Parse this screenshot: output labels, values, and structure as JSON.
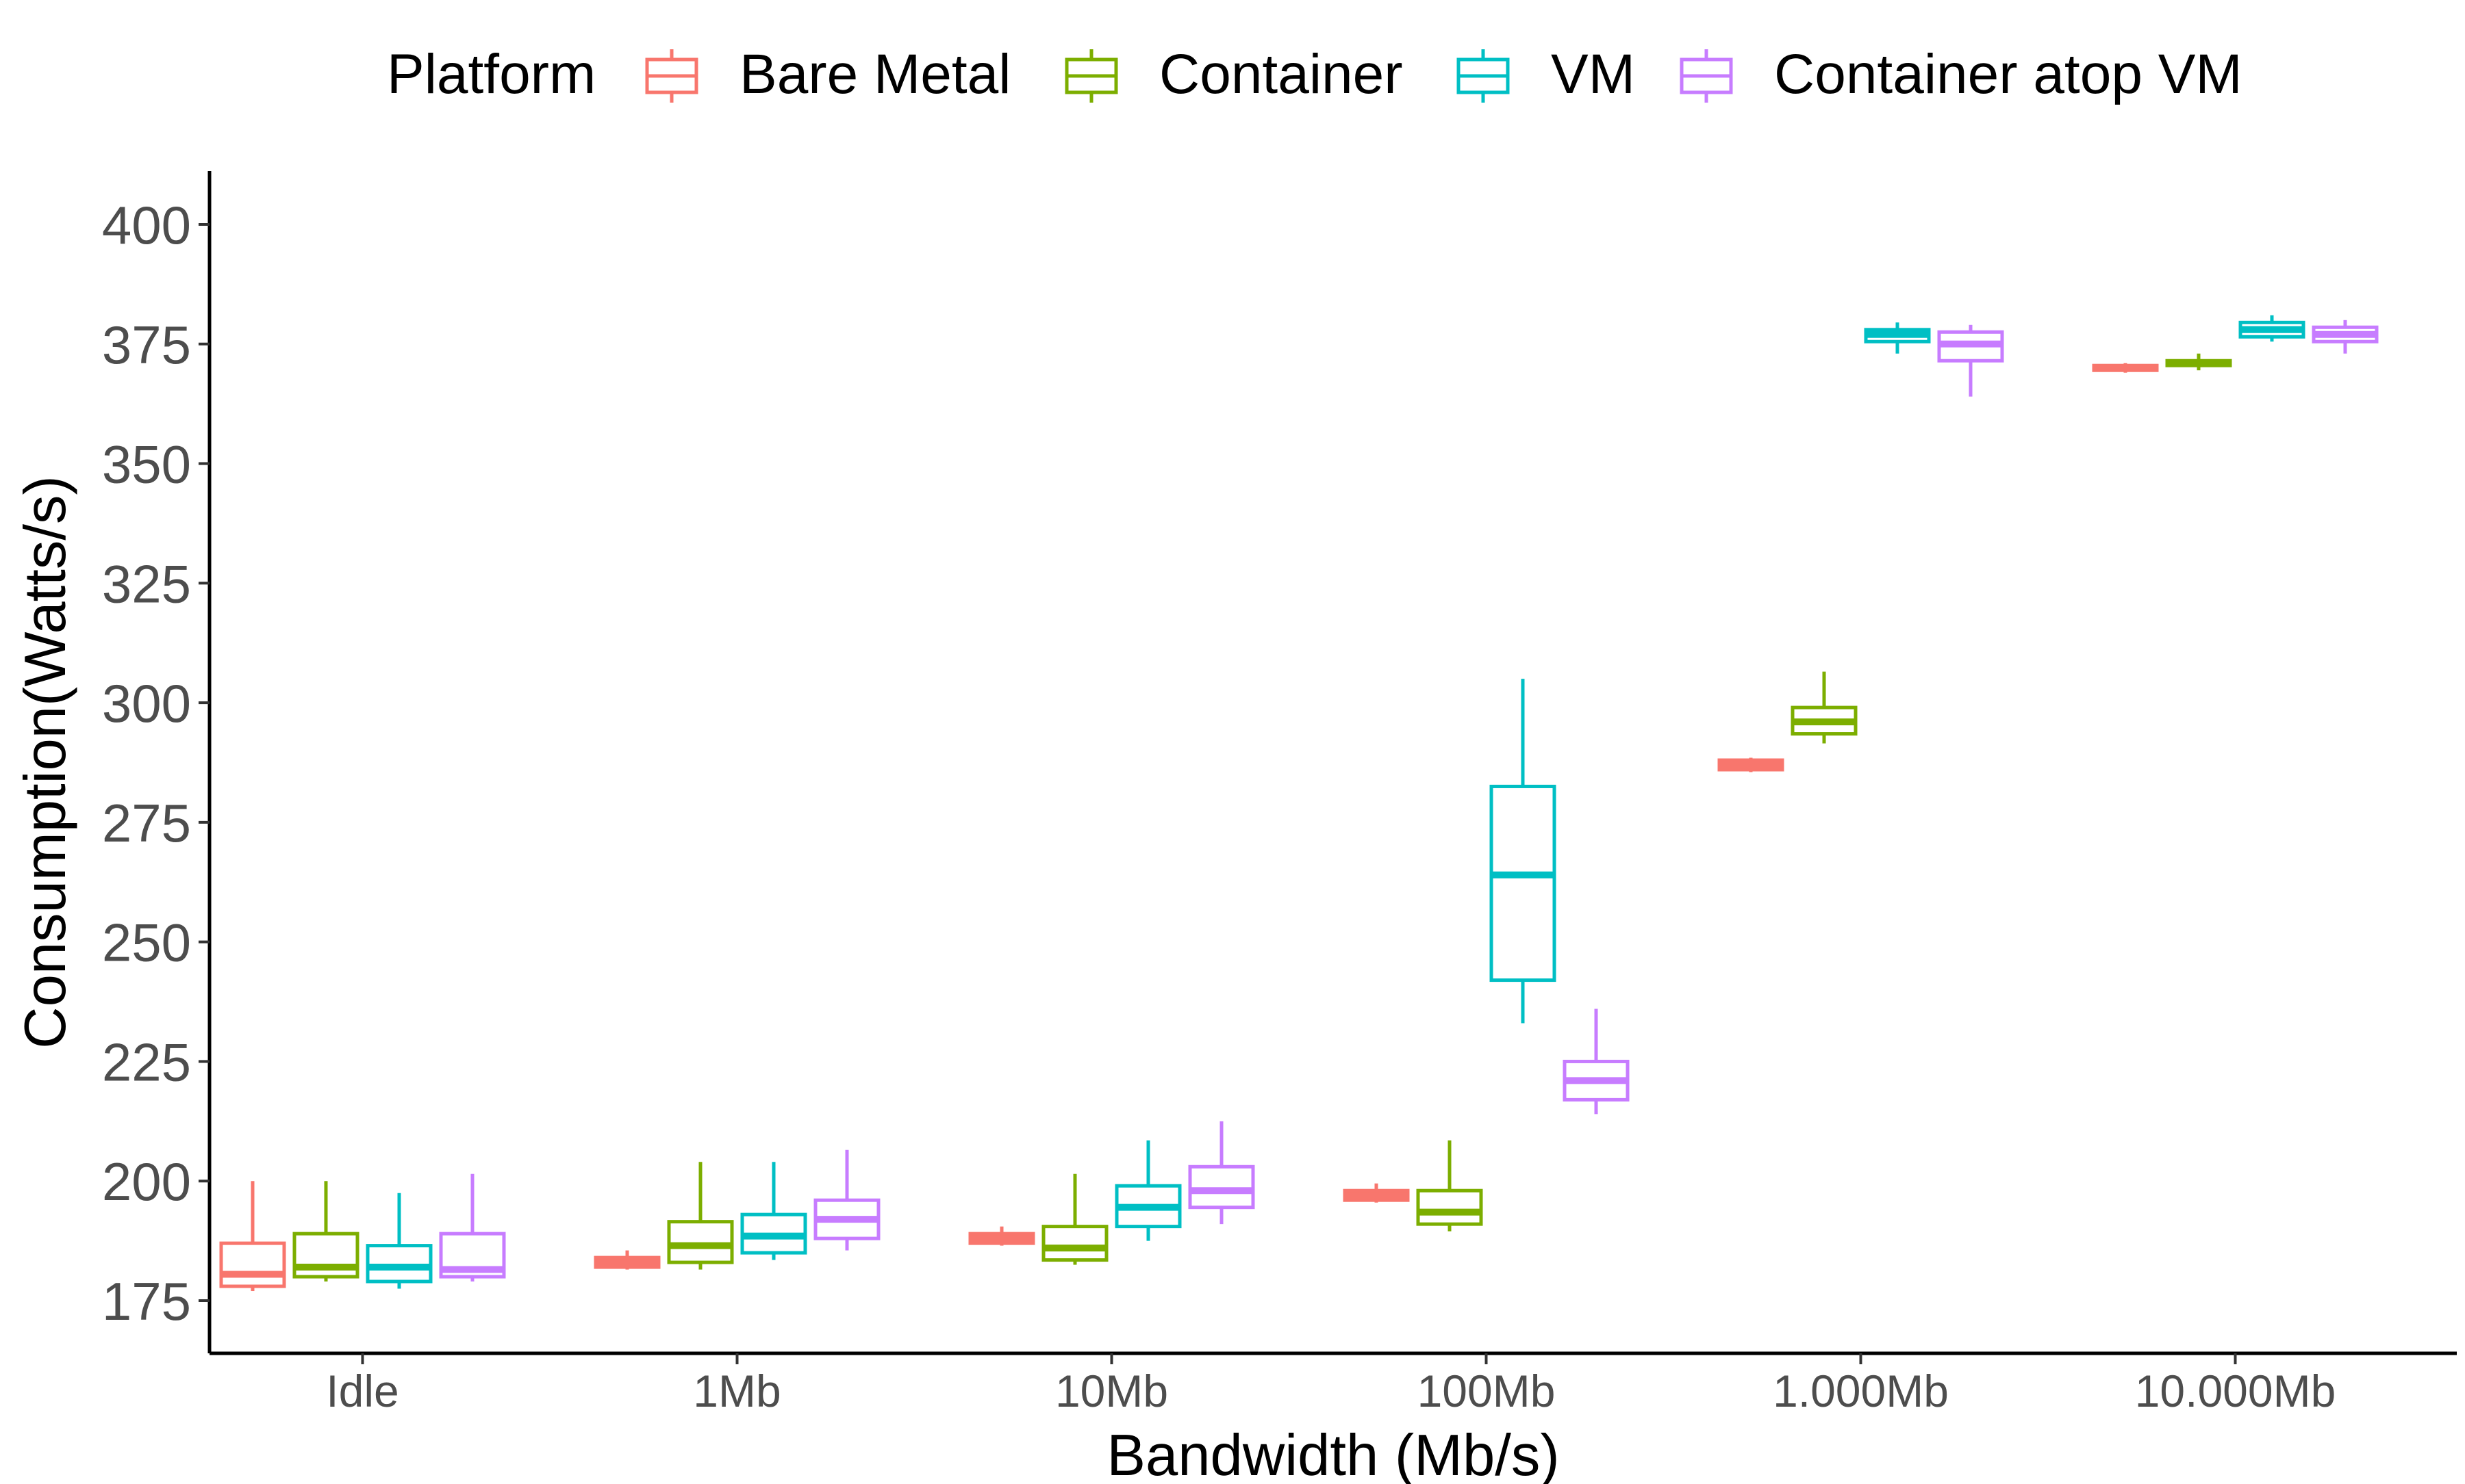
{
  "chart_data": {
    "type": "box",
    "xlabel": "Bandwidth (Mb/s)",
    "ylabel": "Consumption(Watts/s)",
    "ylim": [
      165,
      408
    ],
    "yticks": [
      175,
      200,
      225,
      250,
      275,
      300,
      325,
      350,
      375,
      400
    ],
    "categories": [
      "Idle",
      "1Mb",
      "10Mb",
      "100Mb",
      "1.000Mb",
      "10.000Mb"
    ],
    "legend": {
      "title": "Platform",
      "position": "top"
    },
    "grid": false,
    "series": [
      {
        "name": "Bare Metal",
        "color": "#F8766D",
        "boxes": [
          {
            "min": 177,
            "q1": 178,
            "median": 180.5,
            "q3": 187,
            "max": 200
          },
          {
            "min": 181.5,
            "q1": 182,
            "median": 183,
            "q3": 184,
            "max": 185.5
          },
          {
            "min": 186.5,
            "q1": 187,
            "median": 188,
            "q3": 189,
            "max": 190.5
          },
          {
            "min": 195.5,
            "q1": 196,
            "median": 197,
            "q3": 198,
            "max": 199.5
          },
          {
            "min": 285.5,
            "q1": 286,
            "median": 287,
            "q3": 288,
            "max": 288.5
          },
          {
            "min": 369,
            "q1": 369.5,
            "median": 370,
            "q3": 370.5,
            "max": 371
          }
        ]
      },
      {
        "name": "Container",
        "color": "#7CAE00",
        "boxes": [
          {
            "min": 179,
            "q1": 180,
            "median": 182,
            "q3": 189,
            "max": 200
          },
          {
            "min": 181.5,
            "q1": 183,
            "median": 186.5,
            "q3": 191.5,
            "max": 204
          },
          {
            "min": 182.5,
            "q1": 183.5,
            "median": 186,
            "q3": 190.5,
            "max": 201.5
          },
          {
            "min": 189.5,
            "q1": 191,
            "median": 193.5,
            "q3": 198,
            "max": 208.5
          },
          {
            "min": 291.5,
            "q1": 293.5,
            "median": 296,
            "q3": 299,
            "max": 306.5
          },
          {
            "min": 369.5,
            "q1": 370.5,
            "median": 371,
            "q3": 371.5,
            "max": 373
          }
        ]
      },
      {
        "name": "VM",
        "color": "#00BFC4",
        "boxes": [
          {
            "min": 177.5,
            "q1": 179,
            "median": 182,
            "q3": 186.5,
            "max": 197.5
          },
          {
            "min": 183.5,
            "q1": 185,
            "median": 188.5,
            "q3": 193,
            "max": 204
          },
          {
            "min": 187.5,
            "q1": 190.5,
            "median": 194.5,
            "q3": 199,
            "max": 208.5
          },
          {
            "min": 233,
            "q1": 242,
            "median": 264,
            "q3": 282.5,
            "max": 305
          },
          {
            "min": 373,
            "q1": 375.5,
            "median": 377,
            "q3": 378,
            "max": 379.5
          },
          {
            "min": 375.5,
            "q1": 376.5,
            "median": 378,
            "q3": 379.5,
            "max": 381
          }
        ]
      },
      {
        "name": "Container atop VM",
        "color": "#C77CFF",
        "boxes": [
          {
            "min": 179,
            "q1": 180,
            "median": 181.5,
            "q3": 189,
            "max": 201.5
          },
          {
            "min": 185.5,
            "q1": 188,
            "median": 192,
            "q3": 196,
            "max": 206.5
          },
          {
            "min": 191,
            "q1": 194.5,
            "median": 198,
            "q3": 203,
            "max": 212.5
          },
          {
            "min": 214,
            "q1": 217,
            "median": 221,
            "q3": 225,
            "max": 236
          },
          {
            "min": 364,
            "q1": 371.5,
            "median": 375,
            "q3": 377.5,
            "max": 379
          },
          {
            "min": 373,
            "q1": 375.5,
            "median": 377,
            "q3": 378.5,
            "max": 380
          }
        ]
      }
    ]
  }
}
